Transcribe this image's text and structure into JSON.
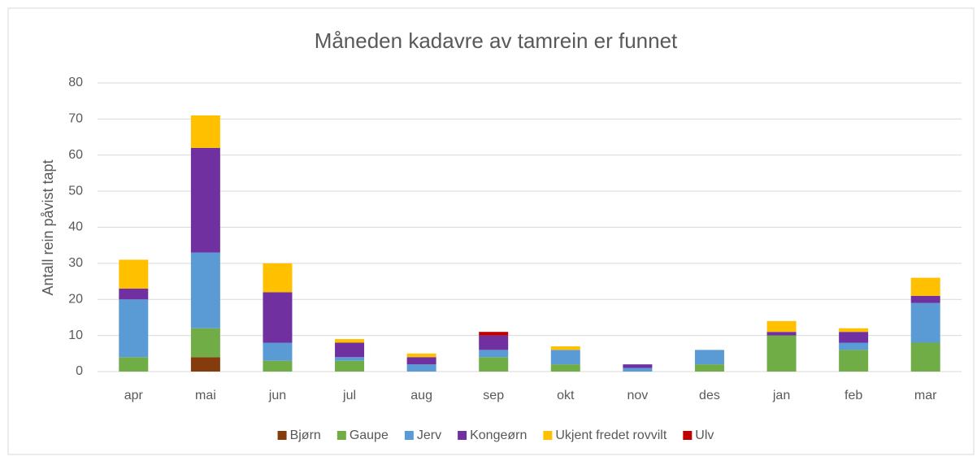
{
  "chart_data": {
    "type": "stacked_bar",
    "title": "Måneden kadavre av tamrein er funnet",
    "y_label": "Antall rein påvist tapt",
    "categories": [
      "apr",
      "mai",
      "jun",
      "jul",
      "aug",
      "sep",
      "okt",
      "nov",
      "des",
      "jan",
      "feb",
      "mar"
    ],
    "series": [
      {
        "name": "Bjørn",
        "color": "#843c0c",
        "values": [
          0,
          4,
          0,
          0,
          0,
          0,
          0,
          0,
          0,
          0,
          0,
          0
        ]
      },
      {
        "name": "Gaupe",
        "color": "#70ad47",
        "values": [
          4,
          8,
          3,
          3,
          0,
          4,
          2,
          0,
          2,
          10,
          6,
          8
        ]
      },
      {
        "name": "Jerv",
        "color": "#5b9bd5",
        "values": [
          16,
          21,
          5,
          1,
          2,
          2,
          4,
          1,
          4,
          0,
          2,
          11
        ]
      },
      {
        "name": "Kongeørn",
        "color": "#7030a0",
        "values": [
          3,
          29,
          14,
          4,
          2,
          4,
          0,
          1,
          0,
          1,
          3,
          2
        ]
      },
      {
        "name": "Ukjent fredet rovvilt",
        "color": "#ffc000",
        "values": [
          8,
          9,
          8,
          1,
          1,
          0,
          1,
          0,
          0,
          3,
          1,
          5
        ]
      },
      {
        "name": "Ulv",
        "color": "#c00000",
        "values": [
          0,
          0,
          0,
          0,
          0,
          1,
          0,
          0,
          0,
          0,
          0,
          0
        ]
      }
    ],
    "ylim": [
      0,
      80
    ],
    "yticks": [
      0,
      10,
      20,
      30,
      40,
      50,
      60,
      70,
      80
    ],
    "grid": true,
    "legend": "bottom"
  }
}
